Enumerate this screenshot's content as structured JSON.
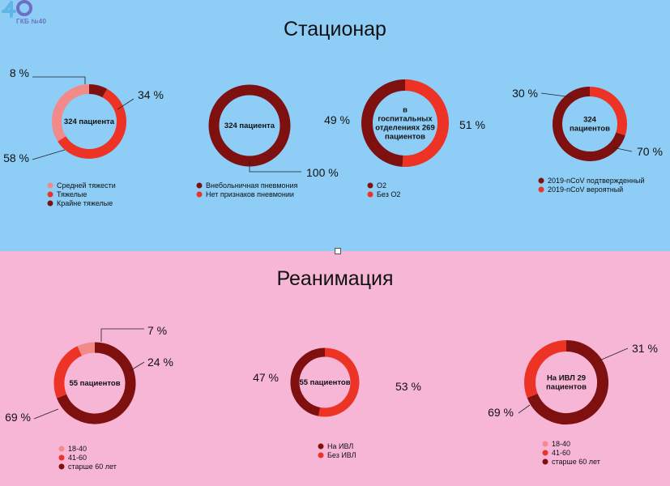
{
  "logo": {
    "text": "ГКБ №40",
    "colors": [
      "#5fb6e6",
      "#6d6fc4"
    ]
  },
  "sections": {
    "top": {
      "title": "Стационар",
      "background": "#8dcdf6"
    },
    "bottom": {
      "title": "Реанимация",
      "background": "#f8b6d6"
    }
  },
  "chart_data": [
    {
      "type": "pie",
      "center_label": [
        "324 пациента"
      ],
      "slices": [
        {
          "label": "Средней тяжести",
          "value": 34,
          "color": "#f28a8a",
          "display": "34 %"
        },
        {
          "label": "Тяжелые",
          "value": 58,
          "color": "#ec3325",
          "display": "58 %"
        },
        {
          "label": "Крайне тяжелые",
          "value": 8,
          "color": "#7e1010",
          "display": "8 %"
        }
      ]
    },
    {
      "type": "pie",
      "center_label": [
        "324 пациента"
      ],
      "slices": [
        {
          "label": "Внебольничная пневмония",
          "value": 100,
          "color": "#7e1010",
          "display": "100 %"
        },
        {
          "label": "Нет признаков пневмонии",
          "value": 0,
          "color": "#ec3325",
          "display": ""
        }
      ]
    },
    {
      "type": "pie",
      "center_label": [
        "в",
        "госпитальных",
        "отделениях 269",
        "пациентов"
      ],
      "slices": [
        {
          "label": "О2",
          "value": 49,
          "color": "#7e1010",
          "display": "49 %"
        },
        {
          "label": "Без О2",
          "value": 51,
          "color": "#ec3325",
          "display": "51 %"
        }
      ]
    },
    {
      "type": "pie",
      "center_label": [
        "324",
        "пациентов"
      ],
      "slices": [
        {
          "label": "2019-nCoV подтвержденный",
          "value": 70,
          "color": "#7e1010",
          "display": "70 %"
        },
        {
          "label": "2019-nCoV вероятный",
          "value": 30,
          "color": "#ec3325",
          "display": "30 %"
        }
      ]
    },
    {
      "type": "pie",
      "center_label": [
        "55 пациентов"
      ],
      "slices": [
        {
          "label": "18-40",
          "value": 7,
          "color": "#f28a8a",
          "display": "7 %"
        },
        {
          "label": "41-60",
          "value": 24,
          "color": "#ec3325",
          "display": "24 %"
        },
        {
          "label": "старше 60 лет",
          "value": 69,
          "color": "#7e1010",
          "display": "69 %"
        }
      ]
    },
    {
      "type": "pie",
      "center_label": [
        "55 пациентов"
      ],
      "slices": [
        {
          "label": "На ИВЛ",
          "value": 47,
          "color": "#7e1010",
          "display": "47 %"
        },
        {
          "label": "Без ИВЛ",
          "value": 53,
          "color": "#ec3325",
          "display": "53 %"
        }
      ]
    },
    {
      "type": "pie",
      "center_label": [
        "На ИВЛ 29",
        "пациентов"
      ],
      "slices": [
        {
          "label": "18-40",
          "value": 0,
          "color": "#f28a8a",
          "display": ""
        },
        {
          "label": "41-60",
          "value": 31,
          "color": "#ec3325",
          "display": "31 %"
        },
        {
          "label": "старше 60 лет",
          "value": 69,
          "color": "#7e1010",
          "display": "69 %"
        }
      ]
    }
  ]
}
